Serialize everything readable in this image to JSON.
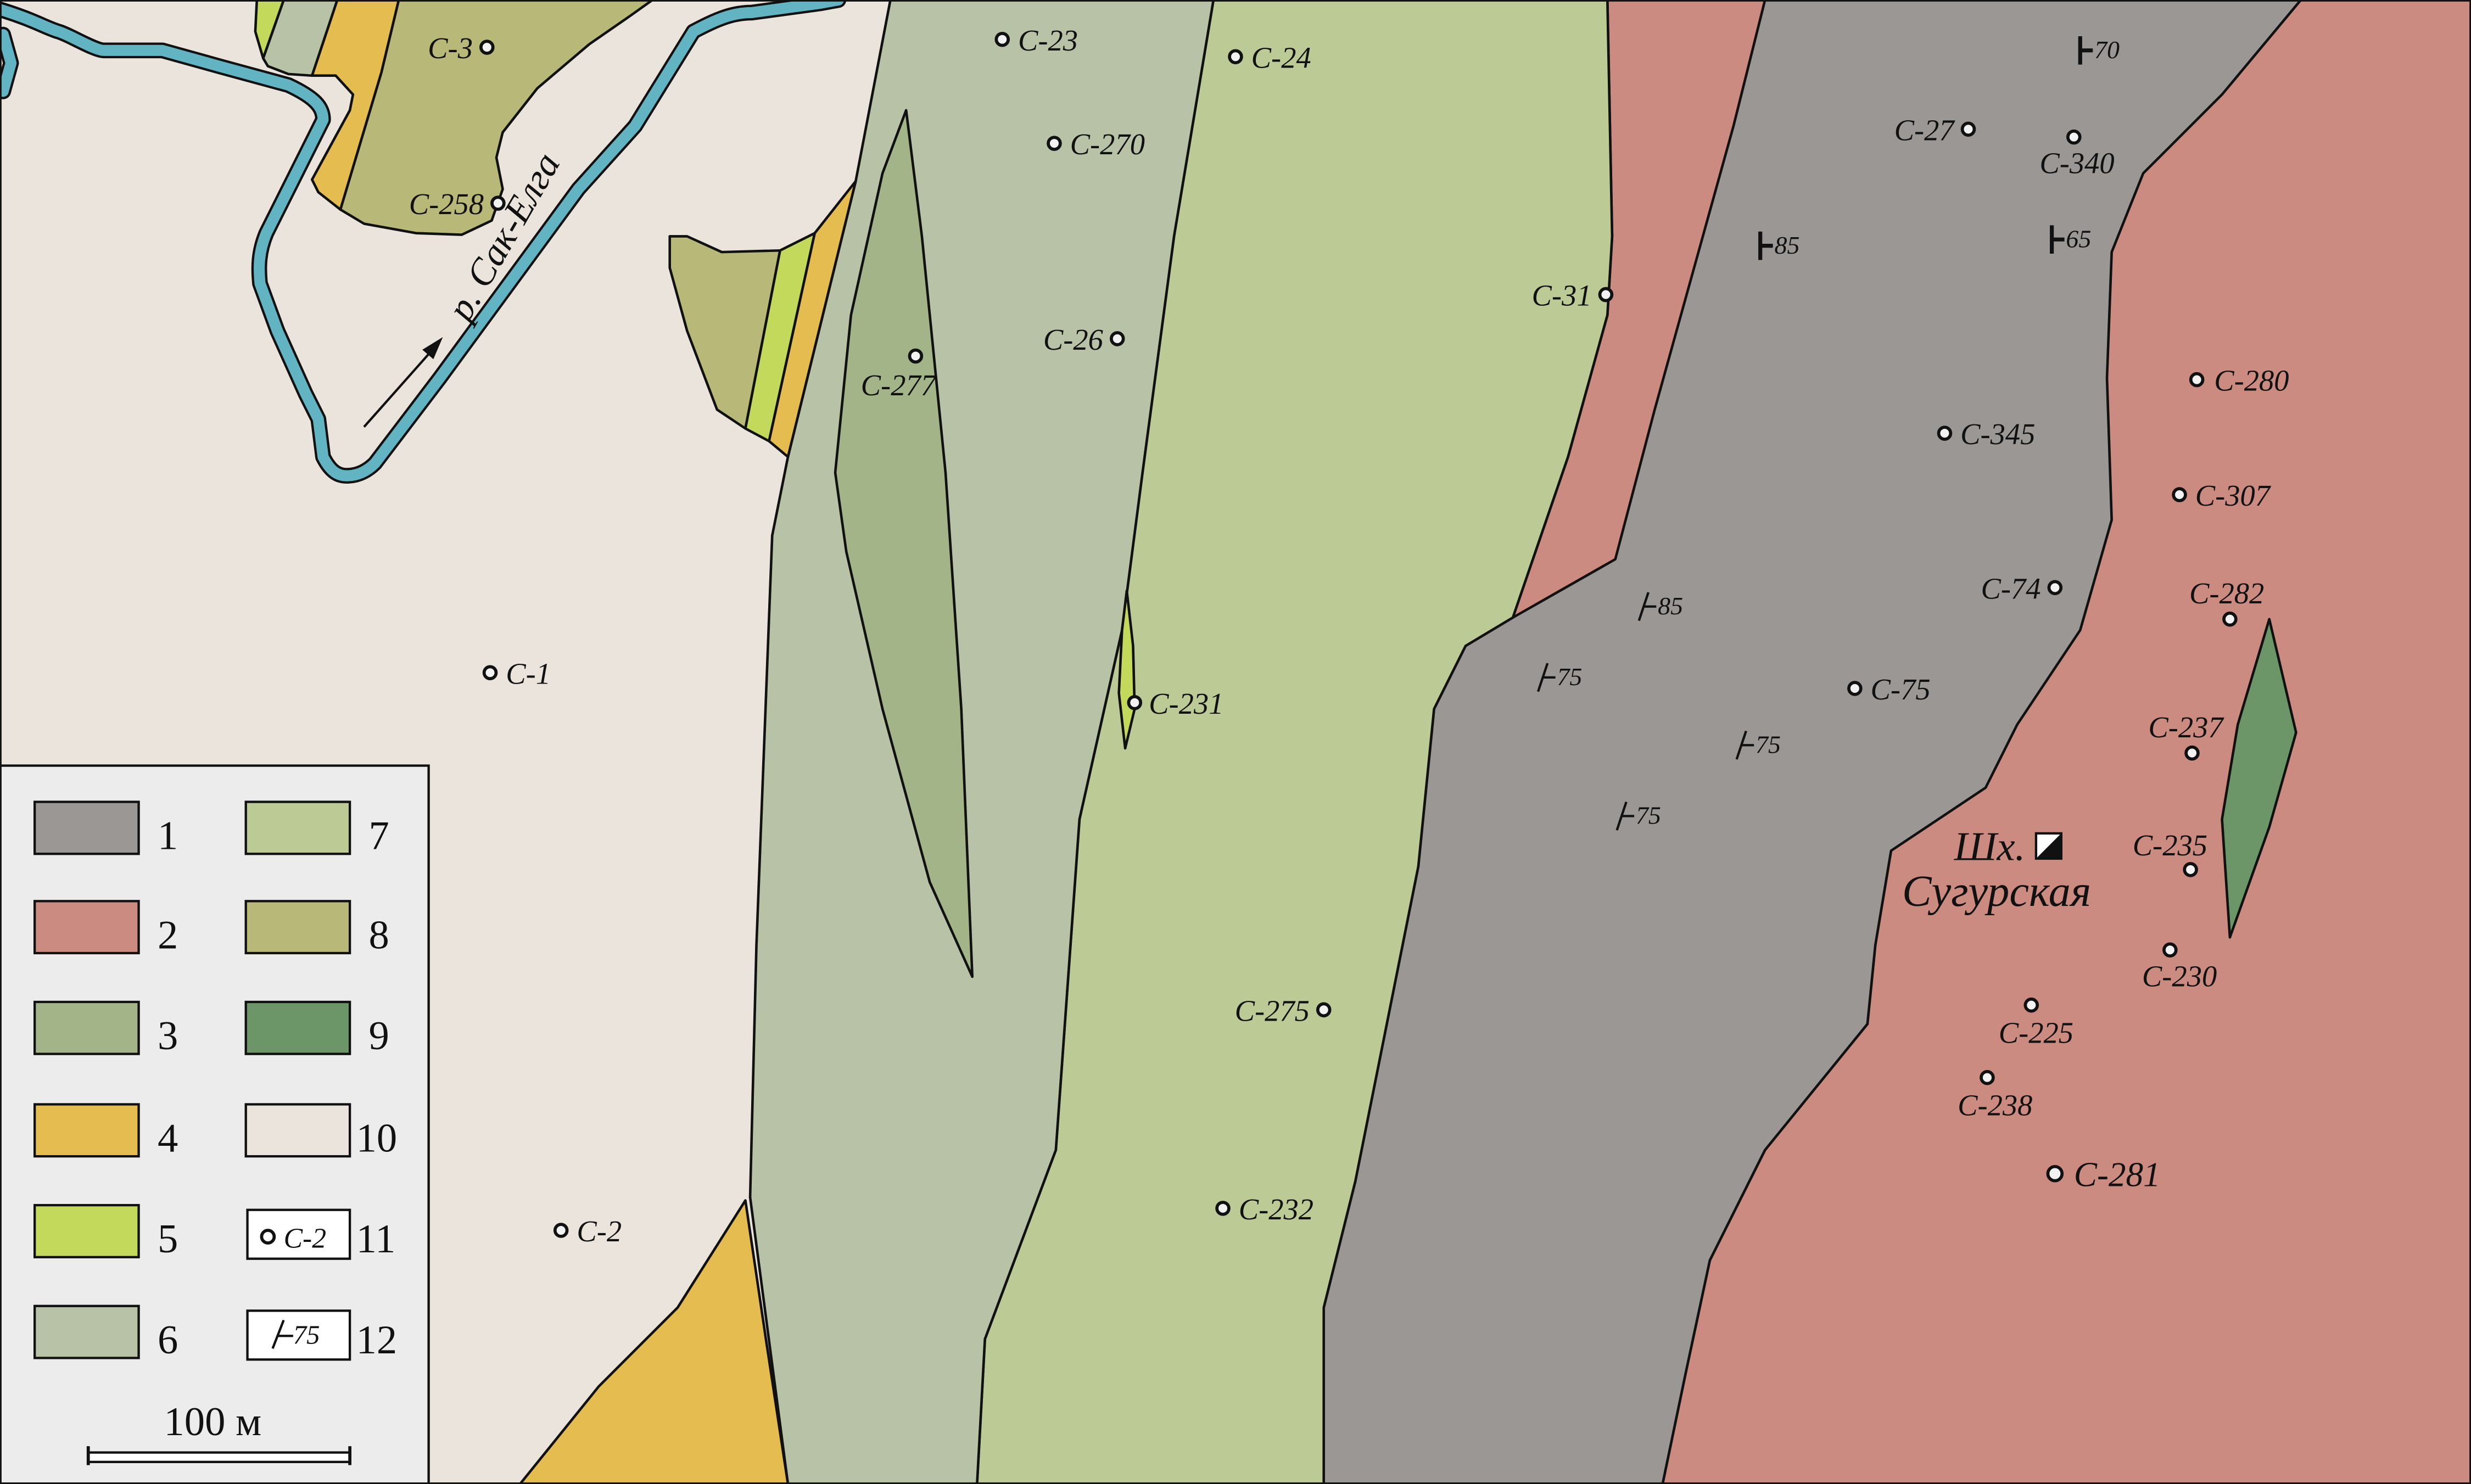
{
  "colors": {
    "unit1": "#9b9794",
    "unit2": "#cc8b80",
    "unit3": "#a3b489",
    "unit4": "#e4bc50",
    "unit5": "#c3d95b",
    "unit6": "#b7c2a6",
    "unit7": "#bccb95",
    "unit8": "#b8b878",
    "unit9": "#6c9668",
    "unit10": "#ebe4dd",
    "river": "#62b4c2"
  },
  "river": {
    "label": "р. Сак-Елга"
  },
  "mine": {
    "line1": "Шх.",
    "line2": "Сугурская",
    "icon": "mine-shaft-icon"
  },
  "samples": [
    "С-3",
    "С-258",
    "С-23",
    "С-24",
    "С-270",
    "С-26",
    "С-277",
    "С-231",
    "С-1",
    "С-2",
    "С-31",
    "С-27",
    "С-340",
    "С-345",
    "С-280",
    "С-307",
    "С-74",
    "С-282",
    "С-75",
    "С-237",
    "С-235",
    "С-230",
    "С-225",
    "С-238",
    "С-281",
    "С-275",
    "С-232"
  ],
  "dips": [
    "70",
    "85",
    "65",
    "85",
    "75",
    "75",
    "75"
  ],
  "legend": {
    "items": [
      "1",
      "2",
      "3",
      "4",
      "5",
      "6",
      "7",
      "8",
      "9",
      "10",
      "11",
      "12"
    ],
    "sample_example": "С-2",
    "dip_example": "75",
    "scale_label": "100 м"
  }
}
